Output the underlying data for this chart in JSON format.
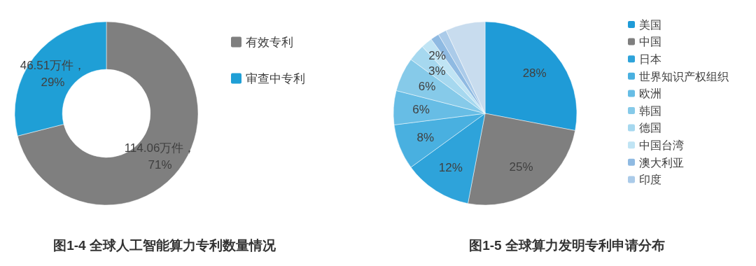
{
  "chart_data": [
    {
      "type": "donut",
      "title": "图1-4 全球人工智能算力专利数量情况",
      "categories": [
        "有效专利",
        "审查中专利"
      ],
      "values": [
        114.06,
        46.51
      ],
      "colors": [
        "#7f7f7f",
        "#1f9fd6"
      ],
      "value_labels": [
        "114.06万件，71%",
        "46.51万件，29%"
      ],
      "legend": "right"
    },
    {
      "type": "pie",
      "title": "图1-5 全球算力发明专利申请分布",
      "categories": [
        "美国",
        "中国",
        "日本",
        "世界知识产权组织",
        "欧洲",
        "韩国",
        "德国",
        "中国台湾",
        "澳大利亚",
        "印度",
        null
      ],
      "values": [
        28,
        25,
        12,
        8,
        6,
        6,
        3,
        2,
        1.5,
        1.5,
        7
      ],
      "colors": [
        "#1f9bd7",
        "#7f7f7f",
        "#2ea3da",
        "#49b0e0",
        "#67bde5",
        "#86cae9",
        "#a6d8ef",
        "#c0e4f4",
        "#8fbae2",
        "#abcbe9",
        "#c8dcee"
      ],
      "value_labels": [
        "28%",
        "25%",
        "12%",
        "8%",
        "6%",
        "6%",
        "3%",
        "2%",
        null,
        null,
        null
      ],
      "legend": "right"
    }
  ]
}
